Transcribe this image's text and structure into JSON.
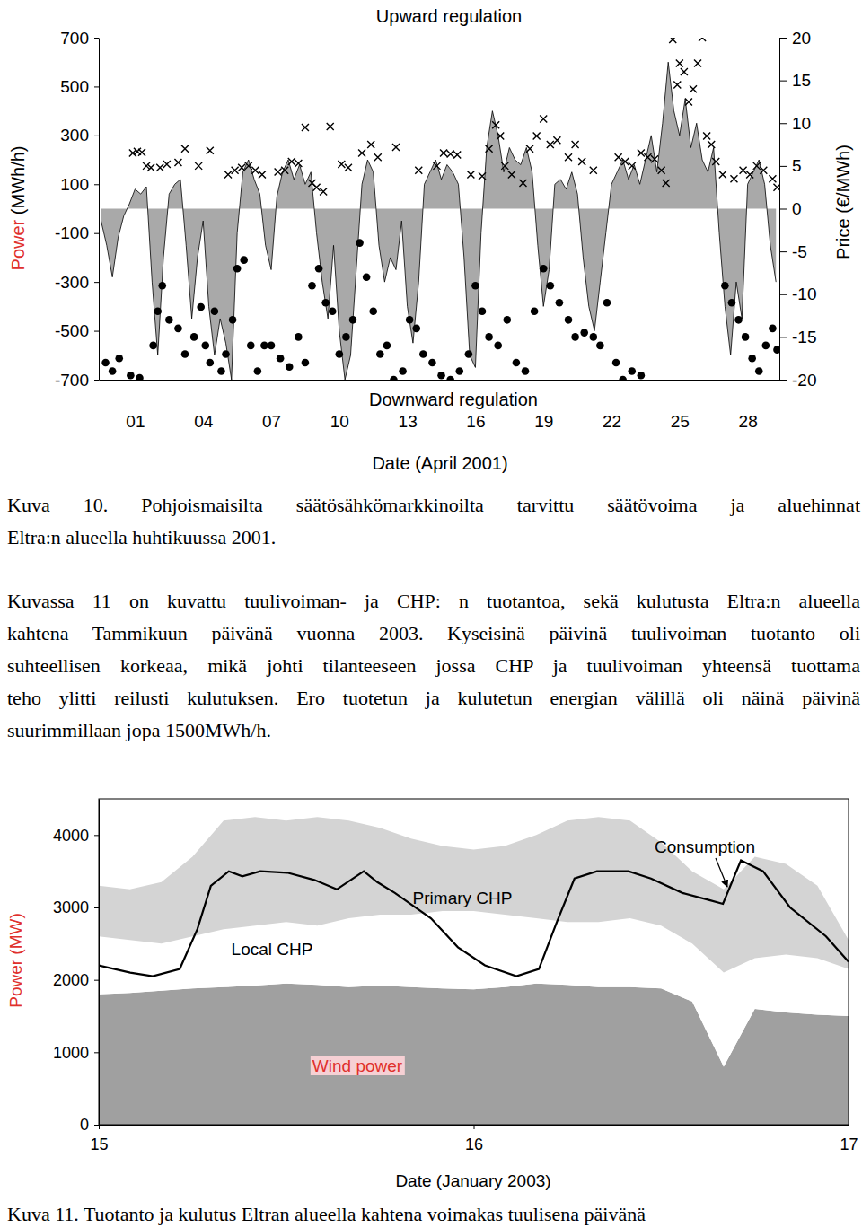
{
  "chart_data": [
    {
      "type": "area",
      "title": "Upward regulation",
      "annotations": [
        "Downward regulation"
      ],
      "x_label": "Date (April 2001)",
      "y_label": "Power (MWh/h)",
      "y2_label": "Price (€/MWh)",
      "xlim": [
        -0.6,
        29.4
      ],
      "xticks": [
        {
          "value": 1,
          "label": "01"
        },
        {
          "value": 4,
          "label": "04"
        },
        {
          "value": 7,
          "label": "07"
        },
        {
          "value": 10,
          "label": "10"
        },
        {
          "value": 13,
          "label": "13"
        },
        {
          "value": 16,
          "label": "16"
        },
        {
          "value": 19,
          "label": "19"
        },
        {
          "value": 22,
          "label": "22"
        },
        {
          "value": 25,
          "label": "25"
        },
        {
          "value": 28,
          "label": "28"
        }
      ],
      "ylim": [
        -700,
        700
      ],
      "yticks": [
        -700,
        -500,
        -300,
        -100,
        100,
        300,
        500,
        700
      ],
      "y2lim": [
        -20,
        20
      ],
      "y2ticks": [
        -20,
        -15,
        -10,
        -5,
        0,
        5,
        10,
        15,
        20
      ],
      "series": [
        {
          "type": "area",
          "color": "#a9a9a9",
          "x": [
            -0.5,
            -0.25,
            0,
            0.25,
            0.5,
            0.75,
            1,
            1.25,
            1.5,
            1.75,
            2,
            2.25,
            2.5,
            2.75,
            3,
            3.25,
            3.5,
            3.75,
            4,
            4.25,
            4.5,
            4.75,
            5,
            5.25,
            5.5,
            5.75,
            6,
            6.25,
            6.5,
            6.75,
            7,
            7.25,
            7.5,
            7.75,
            8,
            8.25,
            8.5,
            8.75,
            9,
            9.25,
            9.5,
            9.75,
            10,
            10.25,
            10.5,
            10.75,
            11,
            11.25,
            11.5,
            11.75,
            12,
            12.25,
            12.5,
            12.75,
            13,
            13.25,
            13.5,
            13.75,
            14,
            14.25,
            14.5,
            14.75,
            15,
            15.25,
            15.5,
            15.75,
            16,
            16.25,
            16.5,
            16.75,
            17,
            17.25,
            17.5,
            17.75,
            18,
            18.25,
            18.5,
            18.75,
            19,
            19.25,
            19.5,
            19.75,
            20,
            20.25,
            20.5,
            20.75,
            21,
            21.25,
            21.5,
            21.75,
            22,
            22.25,
            22.5,
            22.75,
            23,
            23.25,
            23.5,
            23.75,
            24,
            24.25,
            24.5,
            24.75,
            25,
            25.25,
            25.5,
            25.75,
            26,
            26.25,
            26.5,
            26.75,
            27,
            27.25,
            27.5,
            27.75,
            28,
            28.25,
            28.5,
            28.75,
            29,
            29.25
          ],
          "values": [
            -50,
            -150,
            -280,
            -120,
            -30,
            20,
            80,
            60,
            90,
            -300,
            -600,
            -200,
            60,
            100,
            120,
            -150,
            -450,
            -200,
            -50,
            -400,
            -600,
            -450,
            -550,
            -700,
            -100,
            150,
            200,
            120,
            60,
            -150,
            -250,
            50,
            150,
            200,
            120,
            180,
            100,
            150,
            -100,
            -300,
            -450,
            -150,
            -500,
            -700,
            -600,
            -250,
            100,
            200,
            150,
            -150,
            -300,
            -200,
            -250,
            -50,
            -400,
            -550,
            -300,
            100,
            150,
            200,
            120,
            180,
            150,
            100,
            -200,
            -600,
            -650,
            -100,
            250,
            400,
            300,
            150,
            250,
            200,
            180,
            250,
            150,
            -150,
            -400,
            -250,
            100,
            120,
            80,
            150,
            60,
            -200,
            -400,
            -500,
            -300,
            -100,
            100,
            150,
            200,
            120,
            180,
            100,
            200,
            300,
            150,
            350,
            600,
            400,
            300,
            450,
            250,
            350,
            200,
            150,
            250,
            -100,
            -400,
            -600,
            -300,
            -450,
            100,
            150,
            200,
            100,
            -150,
            -300
          ]
        },
        {
          "type": "scatter",
          "marker": "x",
          "color": "#000000",
          "axis": "y2",
          "x": [
            0.9,
            1.1,
            1.3,
            1.5,
            1.7,
            2.1,
            2.4,
            2.9,
            3.2,
            3.8,
            4.3,
            5.1,
            5.4,
            5.7,
            6.0,
            6.3,
            6.6,
            7.3,
            7.6,
            7.9,
            8.2,
            8.5,
            8.8,
            9.0,
            9.3,
            9.6,
            10.1,
            10.4,
            11.0,
            11.4,
            11.7,
            12.5,
            13.5,
            14.3,
            14.6,
            14.9,
            15.2,
            15.8,
            16.3,
            16.6,
            16.9,
            17.1,
            17.3,
            17.6,
            18.1,
            18.4,
            18.7,
            19.0,
            19.3,
            19.6,
            20.1,
            20.4,
            20.7,
            21.2,
            22.3,
            22.6,
            22.9,
            23.3,
            23.6,
            23.9,
            24.2,
            24.4,
            24.7,
            24.9,
            25.0,
            25.2,
            25.4,
            25.6,
            25.8,
            26.0,
            26.2,
            26.4,
            26.6,
            26.9,
            27.4,
            27.8,
            28.1,
            28.4,
            28.7,
            29.1,
            29.3
          ],
          "values": [
            6.5,
            6.7,
            6.6,
            5,
            4.8,
            4.8,
            5.2,
            5.4,
            7,
            5,
            6.8,
            4,
            4.5,
            4.8,
            5,
            4.5,
            4,
            4.3,
            4.5,
            5.5,
            5.3,
            9.5,
            3,
            2.5,
            2,
            9.6,
            5.2,
            4.8,
            6.5,
            7.5,
            6,
            7.2,
            4.5,
            5,
            6.5,
            6.4,
            6.3,
            4,
            3.8,
            7,
            9.8,
            8.5,
            5,
            4,
            3,
            7,
            8.5,
            10.5,
            7.5,
            8,
            6,
            7.5,
            5.5,
            4.5,
            6,
            5.5,
            5,
            6.5,
            6,
            5.8,
            4.5,
            3,
            19.8,
            14.5,
            17,
            16,
            12.5,
            14,
            17,
            20,
            8.5,
            7.5,
            5.5,
            4,
            3.5,
            4.5,
            4,
            5,
            4.5,
            3.5,
            2.5
          ]
        },
        {
          "type": "scatter",
          "marker": "circle",
          "color": "#000000",
          "axis": "y2",
          "x": [
            -0.3,
            0,
            0.3,
            0.8,
            1.2,
            1.8,
            2.0,
            2.2,
            2.5,
            2.9,
            3.2,
            3.6,
            3.9,
            4.1,
            4.3,
            4.5,
            4.8,
            5.0,
            5.3,
            5.5,
            5.8,
            6.1,
            6.4,
            6.7,
            7.0,
            7.4,
            7.8,
            8.2,
            8.5,
            8.8,
            9.1,
            9.4,
            9.7,
            10.0,
            10.3,
            10.6,
            10.9,
            11.2,
            11.5,
            11.8,
            12.1,
            12.4,
            12.8,
            13.1,
            13.4,
            13.7,
            14.1,
            14.5,
            14.9,
            15.3,
            15.7,
            16.0,
            16.3,
            16.6,
            17.0,
            17.4,
            17.8,
            18.2,
            18.6,
            19.0,
            19.3,
            19.7,
            20.1,
            20.4,
            20.8,
            21.2,
            21.5,
            21.8,
            22.2,
            22.5,
            22.9,
            23.3,
            27.0,
            27.3,
            27.6,
            27.9,
            28.2,
            28.5,
            28.8,
            29.1,
            29.3
          ],
          "values": [
            -18,
            -19,
            -17.5,
            -19.5,
            -19.8,
            -16,
            -12,
            -9,
            -13,
            -14,
            -17,
            -15,
            -11.5,
            -16,
            -18,
            -12,
            -19,
            -17,
            -13,
            -7,
            -6,
            -16,
            -19,
            -16,
            -16,
            -17.5,
            -18.5,
            -15,
            -18,
            -9,
            -7,
            -11,
            -12,
            -17,
            -15,
            -13,
            -4,
            -8,
            -12,
            -17,
            -16,
            -20,
            -19,
            -13,
            -14,
            -17,
            -18,
            -19.5,
            -20,
            -19,
            -17,
            -9,
            -12,
            -15,
            -16,
            -13,
            -18,
            -19,
            -12,
            -7,
            -9,
            -11,
            -13,
            -15,
            -14.5,
            -15,
            -16,
            -11,
            -18,
            -20,
            -19,
            -19.5,
            -9,
            -11,
            -13,
            -15,
            -17.5,
            -19,
            -16,
            -14,
            -16.5
          ]
        }
      ]
    },
    {
      "type": "area",
      "stacked": true,
      "x_label": "Date (January 2003)",
      "y_label": "Power (MW)",
      "x": [
        15,
        15.083,
        15.167,
        15.25,
        15.333,
        15.417,
        15.5,
        15.583,
        15.667,
        15.75,
        15.833,
        15.917,
        16,
        16.083,
        16.167,
        16.25,
        16.333,
        16.417,
        16.5,
        16.583,
        16.667,
        16.75,
        16.833,
        16.917,
        17
      ],
      "xlim": [
        15,
        17
      ],
      "xticks": [
        15,
        16,
        17
      ],
      "ylim": [
        0,
        4500
      ],
      "yticks": [
        0,
        1000,
        2000,
        3000,
        4000
      ],
      "series": [
        {
          "name": "Wind power",
          "color": "#a0a0a0",
          "values": [
            1800,
            1820,
            1850,
            1880,
            1900,
            1920,
            1950,
            1930,
            1900,
            1920,
            1900,
            1880,
            1870,
            1900,
            1950,
            1930,
            1900,
            1900,
            1880,
            1700,
            800,
            1600,
            1550,
            1520,
            1500
          ]
        },
        {
          "name": "Local CHP",
          "color": "#ffffff",
          "values": [
            800,
            730,
            650,
            720,
            800,
            830,
            850,
            820,
            950,
            980,
            1000,
            1070,
            1080,
            1000,
            900,
            870,
            900,
            950,
            870,
            800,
            1300,
            700,
            800,
            780,
            650
          ]
        },
        {
          "name": "Primary CHP",
          "color": "#d4d4d4",
          "values": [
            700,
            700,
            850,
            1100,
            1500,
            1500,
            1400,
            1500,
            1350,
            1200,
            1050,
            900,
            850,
            950,
            1150,
            1400,
            1450,
            1350,
            1150,
            1000,
            1150,
            1400,
            1250,
            1000,
            400
          ]
        },
        {
          "name": "Consumption",
          "type": "line",
          "color": "#000000",
          "x": [
            15,
            15.084,
            15.144,
            15.216,
            15.263,
            15.299,
            15.347,
            15.383,
            15.431,
            15.503,
            15.575,
            15.635,
            15.707,
            15.743,
            15.79,
            15.886,
            15.958,
            16.03,
            16.114,
            16.174,
            16.222,
            16.269,
            16.329,
            16.413,
            16.473,
            16.557,
            16.629,
            16.665,
            16.713,
            16.772,
            16.844,
            16.94,
            17
          ],
          "values": [
            2200,
            2100,
            2050,
            2150,
            2700,
            3300,
            3500,
            3430,
            3500,
            3480,
            3380,
            3250,
            3500,
            3350,
            3200,
            2850,
            2450,
            2200,
            2050,
            2150,
            2800,
            3400,
            3500,
            3500,
            3400,
            3200,
            3100,
            3050,
            3650,
            3500,
            3000,
            2600,
            2250
          ]
        }
      ]
    }
  ],
  "text": {
    "caption_10": [
      "Kuva 10. Pohjoismaisilta säätösähkömarkkinoilta tarvittu säätövoima ja aluehinnat",
      "Eltra:n alueella huhtikuussa 2001."
    ],
    "paragraph": [
      "Kuvassa 11 on kuvattu tuulivoiman- ja CHP: n tuotantoa, sekä kulutusta Eltra:n alueella",
      "kahtena Tammikuun päivänä vuonna 2003. Kyseisinä päivinä tuulivoiman tuotanto oli",
      "suhteellisen korkeaa, mikä johti tilanteeseen jossa CHP ja tuulivoiman yhteensä tuottama",
      "teho ylitti reilusti kulutuksen. Ero tuotetun ja kulutetun energian välillä oli näinä päivinä",
      "suurimmillaan jopa 1500MWh/h."
    ],
    "caption_11": [
      "Kuva 11. Tuotanto ja kulutus Eltran alueella kahtena voimakas tuulisena päivänä"
    ]
  }
}
